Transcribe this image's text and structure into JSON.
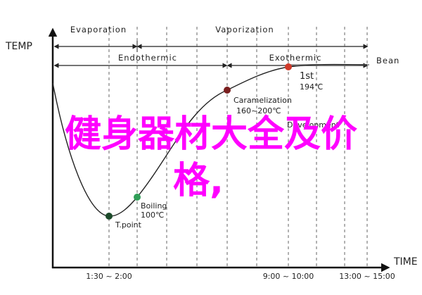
{
  "axes": {
    "y": "TEMP",
    "x": "TIME"
  },
  "phases": {
    "top": [
      "Evaporation",
      "Vaporization"
    ],
    "middle": [
      "Endothermic",
      "Exothermic"
    ],
    "end": "Bean"
  },
  "points": [
    {
      "label": "T.point"
    },
    {
      "label": "Boiling",
      "temp": "100℃"
    },
    {
      "label": "Caramelization",
      "temp": "160~200℃"
    },
    {
      "label": "1st",
      "temp": "194℃"
    }
  ],
  "stage": "Development",
  "times": [
    "1:30 ~ 2:00",
    "9:00 ~ 10:00",
    "13:00 ~ 15:00"
  ],
  "overlay": [
    "健身器材大全及价",
    "格,"
  ]
}
